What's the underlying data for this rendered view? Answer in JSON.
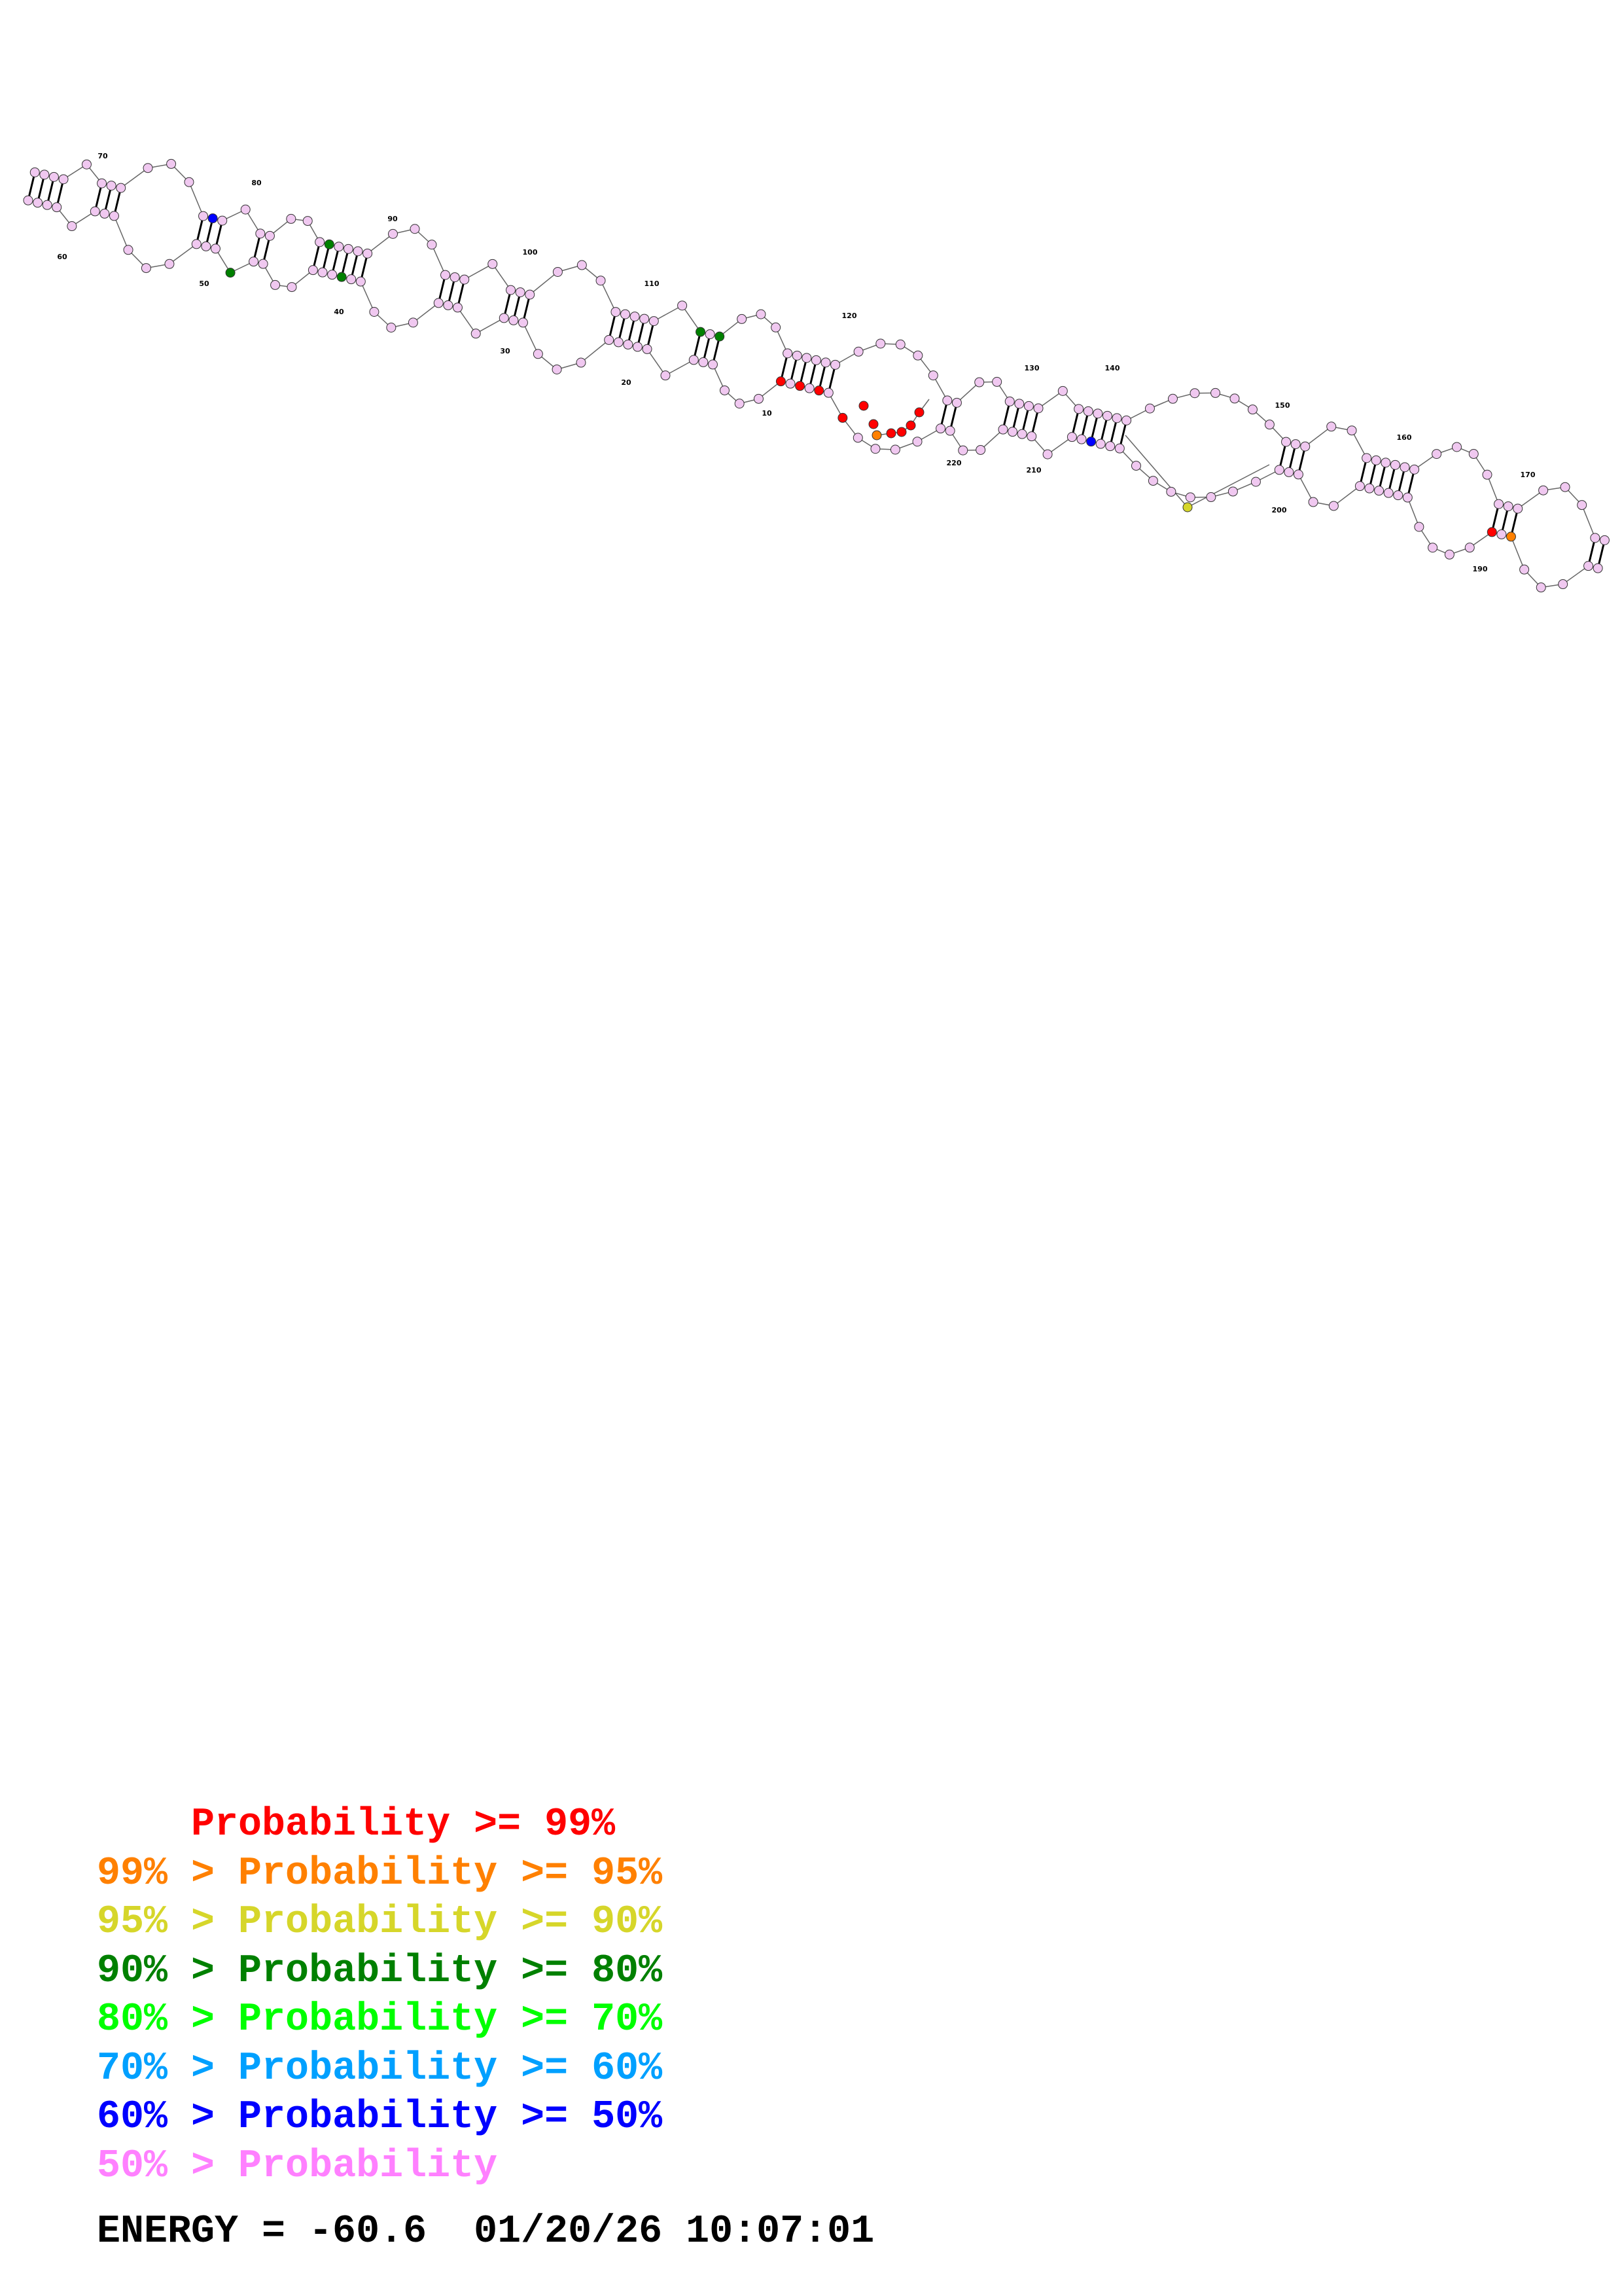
{
  "structure": {
    "tick_labels": [
      "10",
      "20",
      "30",
      "40",
      "50",
      "60",
      "70",
      "80",
      "90",
      "100",
      "110",
      "120",
      "130",
      "140",
      "150",
      "160",
      "170",
      "190",
      "200",
      "210",
      "220"
    ],
    "colors": {
      "p99": "#ff0000",
      "p95": "#ff8000",
      "p90": "#d6d62a",
      "p80": "#008000",
      "p70": "#00ff00",
      "p60": "#00a0ff",
      "p50": "#0000ff",
      "low": "#ff80ff"
    }
  },
  "legend": [
    {
      "prefix": "    ",
      "rest": "Probability >= 99%",
      "color": "#ff0000"
    },
    {
      "prefix": "99% > ",
      "rest": "Probability >= 95%",
      "color": "#ff8000"
    },
    {
      "prefix": "95% > ",
      "rest": "Probability >= 90%",
      "color": "#d6d62a"
    },
    {
      "prefix": "90% > ",
      "rest": "Probability >= 80%",
      "color": "#008000"
    },
    {
      "prefix": "80% > ",
      "rest": "Probability >= 70%",
      "color": "#00ff00"
    },
    {
      "prefix": "70% > ",
      "rest": "Probability >= 60%",
      "color": "#00a0ff"
    },
    {
      "prefix": "60% > ",
      "rest": "Probability >= 50%",
      "color": "#0000ff"
    },
    {
      "prefix": "50% > ",
      "rest": "Probability",
      "color": "#ff80ff"
    }
  ],
  "footer": "ENERGY = -60.6  01/20/26 10:07:01"
}
